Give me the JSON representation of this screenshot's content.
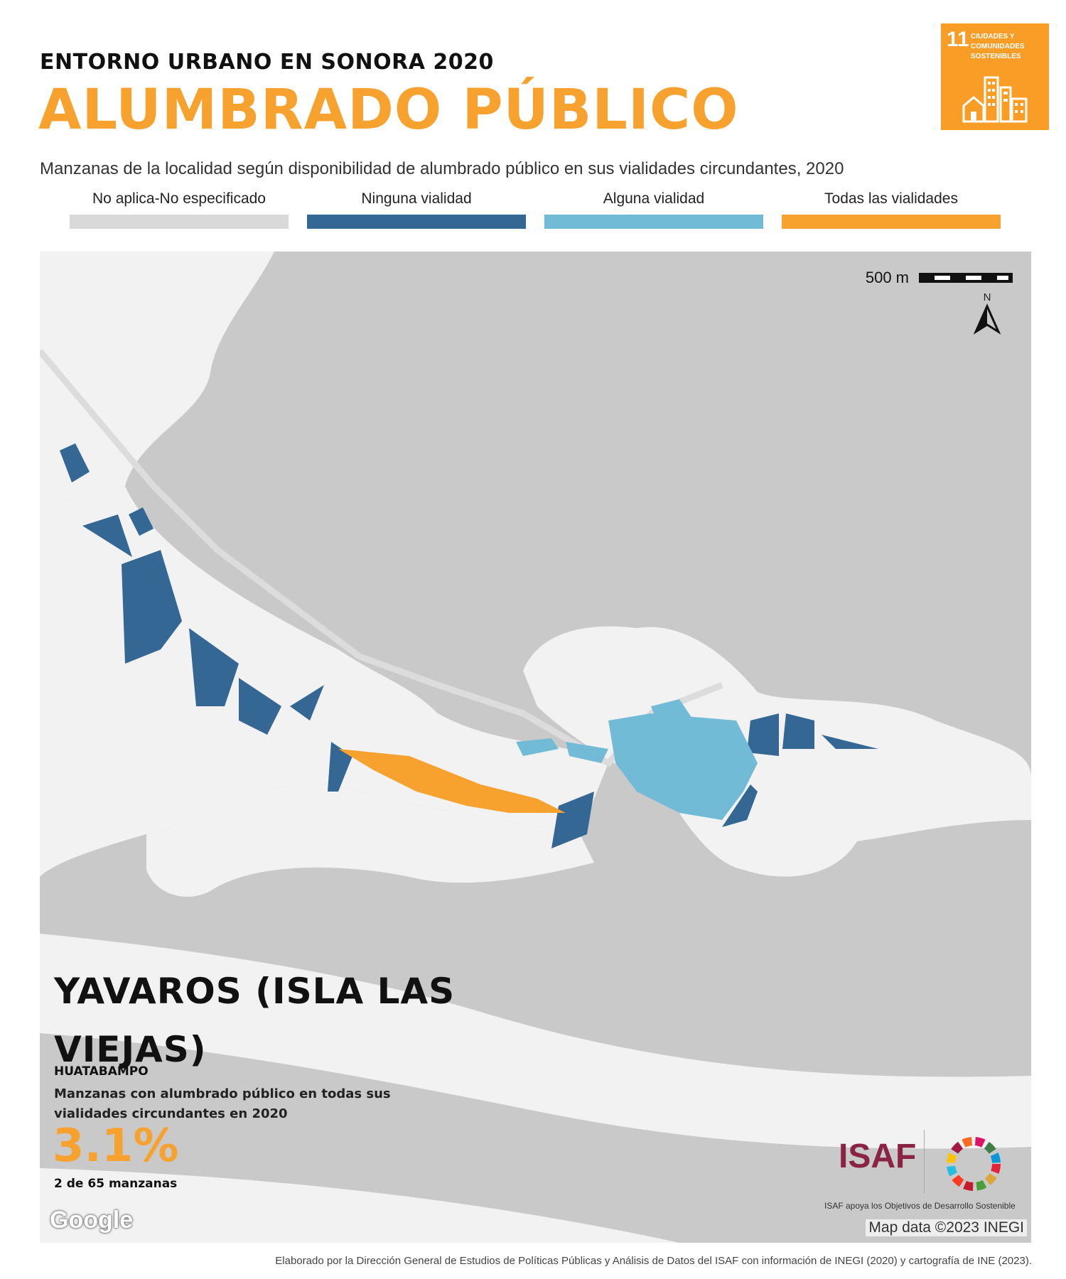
{
  "header": {
    "kicker": "ENTORNO URBANO EN SONORA 2020",
    "title": "ALUMBRADO PÚBLICO",
    "subtitle": "Manzanas de la localidad según disponibilidad de alumbrado público en sus vialidades circundantes, 2020"
  },
  "sdg_badge": {
    "number": "11",
    "text": "CIUDADES Y COMUNIDADES SOSTENIBLES",
    "color": "#F99D26"
  },
  "legend": [
    {
      "label": "No aplica-No especificado",
      "color": "#D9D9D9"
    },
    {
      "label": "Ninguna vialidad",
      "color": "#356795"
    },
    {
      "label": "Alguna vialidad",
      "color": "#72BBD6"
    },
    {
      "label": "Todas las vialidades",
      "color": "#F7A12F"
    }
  ],
  "map": {
    "scale_label": "500 m",
    "north_label": "N",
    "google_label": "Google",
    "attribution": "Map data ©2023 INEGI"
  },
  "summary": {
    "locality": "YAVAROS (ISLA LAS VIEJAS)",
    "municipality": "HUATABAMPO",
    "indicator": "Manzanas con alumbrado público en todas sus vialidades circundantes en 2020",
    "value": "3.1%",
    "count": "2 de 65 manzanas"
  },
  "logos": {
    "isaf": "ISAF",
    "caption": "ISAF apoya los Objetivos de Desarrollo Sostenible"
  },
  "footer": "Elaborado por la Dirección General de Estudios de Políticas Públicas y Análisis de Datos del ISAF con información de INEGI (2020) y cartografía de INE (2023)."
}
